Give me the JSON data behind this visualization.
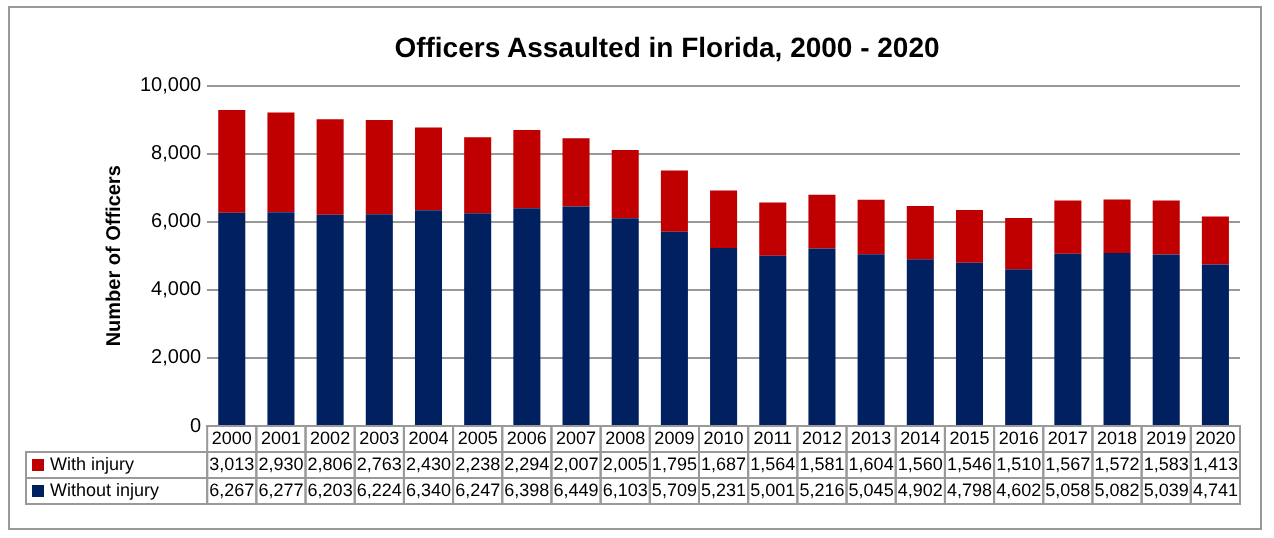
{
  "chart_data": {
    "type": "bar",
    "title": "Officers Assaulted in Florida, 2000 - 2020",
    "ylabel": "Number of Officers",
    "categories": [
      "2000",
      "2001",
      "2002",
      "2003",
      "2004",
      "2005",
      "2006",
      "2007",
      "2008",
      "2009",
      "2010",
      "2011",
      "2012",
      "2013",
      "2014",
      "2015",
      "2016",
      "2017",
      "2018",
      "2019",
      "2020"
    ],
    "series": [
      {
        "name": "Without injury",
        "color": "#002060",
        "values": [
          6267,
          6277,
          6203,
          6224,
          6340,
          6247,
          6398,
          6449,
          6103,
          5709,
          5231,
          5001,
          5216,
          5045,
          4902,
          4798,
          4602,
          5058,
          5082,
          5039,
          4741
        ],
        "value_labels": [
          "6,267",
          "6,277",
          "6,203",
          "6,224",
          "6,340",
          "6,247",
          "6,398",
          "6,449",
          "6,103",
          "5,709",
          "5,231",
          "5,001",
          "5,216",
          "5,045",
          "4,902",
          "4,798",
          "4,602",
          "5,058",
          "5,082",
          "5,039",
          "4,741"
        ]
      },
      {
        "name": "With injury",
        "color": "#c00000",
        "values": [
          3013,
          2930,
          2806,
          2763,
          2430,
          2238,
          2294,
          2007,
          2005,
          1795,
          1687,
          1564,
          1581,
          1604,
          1560,
          1546,
          1510,
          1567,
          1572,
          1583,
          1413
        ],
        "value_labels": [
          "3,013",
          "2,930",
          "2,806",
          "2,763",
          "2,430",
          "2,238",
          "2,294",
          "2,007",
          "2,005",
          "1,795",
          "1,687",
          "1,564",
          "1,581",
          "1,604",
          "1,560",
          "1,546",
          "1,510",
          "1,567",
          "1,572",
          "1,583",
          "1,413"
        ]
      }
    ],
    "stacked": true,
    "ylim": [
      0,
      10000
    ],
    "yticks": [
      0,
      {
        "value": 2000,
        "label": "2,000"
      },
      {
        "value": 4000,
        "label": "4,000"
      },
      {
        "value": 6000,
        "label": "6,000"
      },
      {
        "value": 8000,
        "label": "8,000"
      },
      {
        "value": 10000,
        "label": "10,000"
      }
    ],
    "grid": "y",
    "legend": "bottom"
  }
}
